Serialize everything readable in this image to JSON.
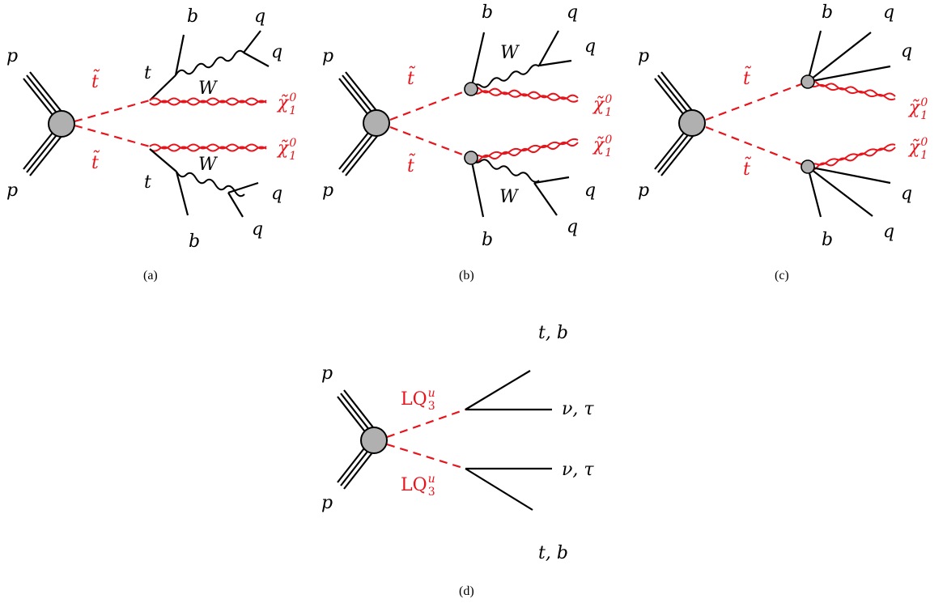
{
  "colors": {
    "susy": "#e8141b",
    "sm": "#000000",
    "blob": "#b0b0b0"
  },
  "labels": {
    "proton": "p",
    "stop": "t̃",
    "top": "t",
    "b": "b",
    "q": "q",
    "w": "W",
    "neutralino": "χ̃",
    "neutralino_sup": "0",
    "neutralino_sub": "1",
    "lq": "LQ",
    "lq_sup": "u",
    "lq_sub": "3",
    "tb": "t, b",
    "nutau": "ν, τ"
  },
  "captions": {
    "a": "(a)",
    "b": "(b)",
    "c": "(c)",
    "d": "(d)"
  }
}
